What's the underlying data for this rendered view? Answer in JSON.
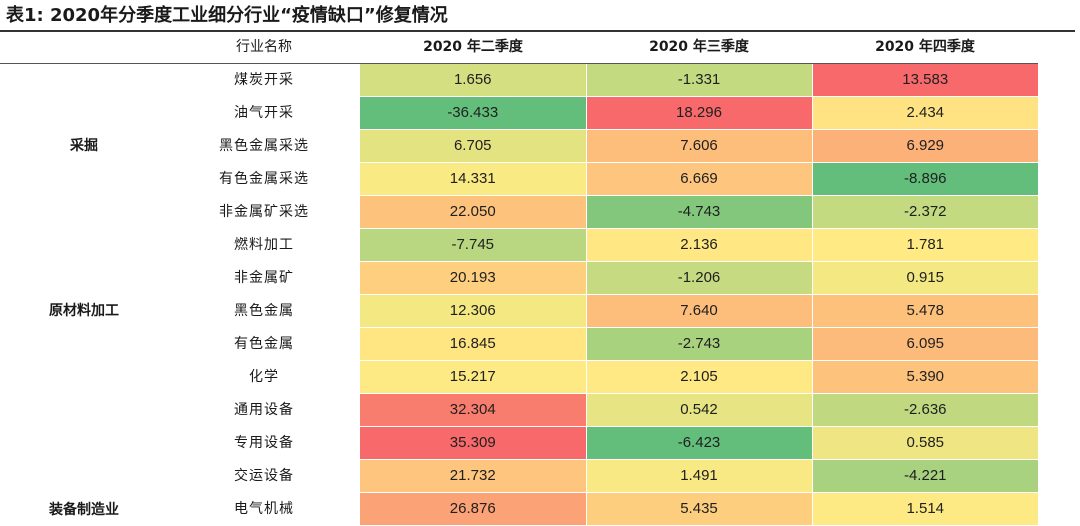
{
  "title": "表1: 2020年分季度工业细分行业“疫情缺口”修复情况",
  "chart_data": {
    "type": "heatmap",
    "columns": [
      "行业名称",
      "2020 年二季度",
      "2020 年三季度",
      "2020 年四季度"
    ],
    "groups": [
      {
        "name": "采掘",
        "rows": [
          0,
          1,
          2,
          3,
          4
        ]
      },
      {
        "name": "原材料加工",
        "rows": [
          5,
          6,
          7,
          8,
          9
        ]
      },
      {
        "name": "装备制造业",
        "rows": [
          10,
          11,
          12,
          13
        ]
      }
    ],
    "rows": [
      {
        "industry": "煤炭开采",
        "values": [
          "1.656",
          "-1.331",
          "13.583"
        ]
      },
      {
        "industry": "油气开采",
        "values": [
          "-36.433",
          "18.296",
          "2.434"
        ]
      },
      {
        "industry": "黑色金属采选",
        "values": [
          "6.705",
          "7.606",
          "6.929"
        ]
      },
      {
        "industry": "有色金属采选",
        "values": [
          "14.331",
          "6.669",
          "-8.896"
        ]
      },
      {
        "industry": "非金属矿采选",
        "values": [
          "22.050",
          "-4.743",
          "-2.372"
        ]
      },
      {
        "industry": "燃料加工",
        "values": [
          "-7.745",
          "2.136",
          "1.781"
        ]
      },
      {
        "industry": "非金属矿",
        "values": [
          "20.193",
          "-1.206",
          "0.915"
        ]
      },
      {
        "industry": "黑色金属",
        "values": [
          "12.306",
          "7.640",
          "5.478"
        ]
      },
      {
        "industry": "有色金属",
        "values": [
          "16.845",
          "-2.743",
          "6.095"
        ]
      },
      {
        "industry": "化学",
        "values": [
          "15.217",
          "2.105",
          "5.390"
        ]
      },
      {
        "industry": "通用设备",
        "values": [
          "32.304",
          "0.542",
          "-2.636"
        ]
      },
      {
        "industry": "专用设备",
        "values": [
          "35.309",
          "-6.423",
          "0.585"
        ]
      },
      {
        "industry": "交运设备",
        "values": [
          "21.732",
          "1.491",
          "-4.221"
        ]
      },
      {
        "industry": "电气机械",
        "values": [
          "26.876",
          "5.435",
          "1.514"
        ]
      }
    ],
    "colors": {
      "low": "#63be7b",
      "mid": "#ffeb84",
      "high": "#f8696b"
    }
  }
}
